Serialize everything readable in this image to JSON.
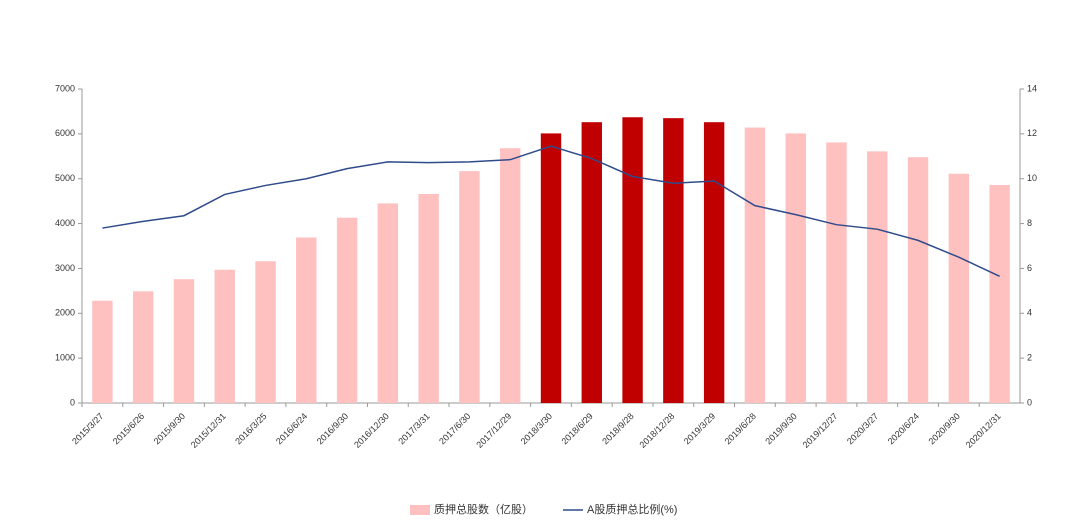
{
  "chart_data": {
    "type": "bar-line",
    "categories": [
      "2015/3/27",
      "2015/6/26",
      "2015/9/30",
      "2015/12/31",
      "2016/3/25",
      "2016/6/24",
      "2016/9/30",
      "2016/12/30",
      "2017/3/31",
      "2017/6/30",
      "2017/12/29",
      "2018/3/30",
      "2018/6/29",
      "2018/9/28",
      "2018/12/28",
      "2019/3/29",
      "2019/6/28",
      "2019/9/30",
      "2019/12/27",
      "2020/3/27",
      "2020/6/24",
      "2020/9/30",
      "2020/12/31"
    ],
    "series": [
      {
        "name": "质押总股数（亿股）",
        "type": "bar",
        "color": "#ffc0c0",
        "colors": [
          "#ffc0c0",
          "#ffc0c0",
          "#ffc0c0",
          "#ffc0c0",
          "#ffc0c0",
          "#ffc0c0",
          "#ffc0c0",
          "#ffc0c0",
          "#ffc0c0",
          "#ffc0c0",
          "#ffc0c0",
          "#c00000",
          "#c00000",
          "#c00000",
          "#c00000",
          "#c00000",
          "#ffc0c0",
          "#ffc0c0",
          "#ffc0c0",
          "#ffc0c0",
          "#ffc0c0",
          "#ffc0c0",
          "#ffc0c0"
        ],
        "values": [
          2280,
          2490,
          2760,
          2970,
          3160,
          3690,
          4130,
          4450,
          4660,
          5170,
          5680,
          6010,
          6260,
          6370,
          6350,
          6260,
          6140,
          6010,
          5810,
          5610,
          5480,
          5110,
          4860
        ]
      },
      {
        "name": "A股质押总比例(%)",
        "type": "line",
        "axis": "y2",
        "color": "#2f4b8a",
        "values": [
          7.8,
          8.1,
          8.35,
          9.3,
          9.7,
          10.0,
          10.45,
          10.75,
          10.72,
          10.75,
          10.85,
          11.45,
          10.9,
          10.1,
          9.8,
          9.9,
          8.8,
          8.4,
          7.95,
          7.75,
          7.25,
          6.5,
          5.65
        ]
      }
    ],
    "ylim": [
      0,
      7000
    ],
    "yticks": [
      0,
      1000,
      2000,
      3000,
      4000,
      5000,
      6000,
      7000
    ],
    "y2lim": [
      0,
      14
    ],
    "y2ticks": [
      0,
      2,
      4,
      6,
      8,
      10,
      12,
      14
    ],
    "legend": "bottom"
  }
}
